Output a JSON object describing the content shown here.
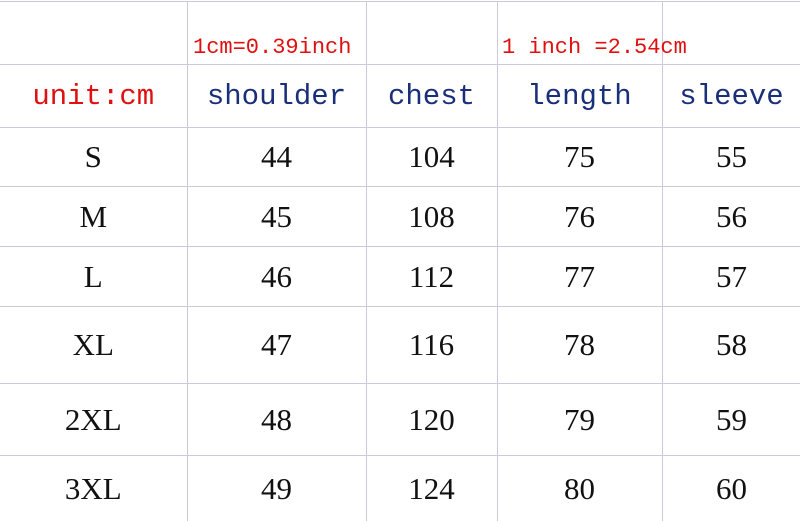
{
  "notes": {
    "cm_to_inch": "1cm=0.39inch",
    "inch_to_cm": "1 inch =2.54cm"
  },
  "header": {
    "unit": "unit:cm",
    "columns": [
      "shoulder",
      "chest",
      "length",
      "sleeve"
    ]
  },
  "rows": [
    {
      "size": "S",
      "values": [
        "44",
        "104",
        "75",
        "55"
      ]
    },
    {
      "size": "M",
      "values": [
        "45",
        "108",
        "76",
        "56"
      ]
    },
    {
      "size": "L",
      "values": [
        "46",
        "112",
        "77",
        "57"
      ]
    },
    {
      "size": "XL",
      "values": [
        "47",
        "116",
        "78",
        "58"
      ]
    },
    {
      "size": "2XL",
      "values": [
        "48",
        "120",
        "79",
        "59"
      ]
    },
    {
      "size": "3XL",
      "values": [
        "49",
        "124",
        "80",
        "60"
      ]
    }
  ],
  "colors": {
    "note": "#e01010",
    "header": "#1a2f7a",
    "grid": "#c9cadb"
  }
}
